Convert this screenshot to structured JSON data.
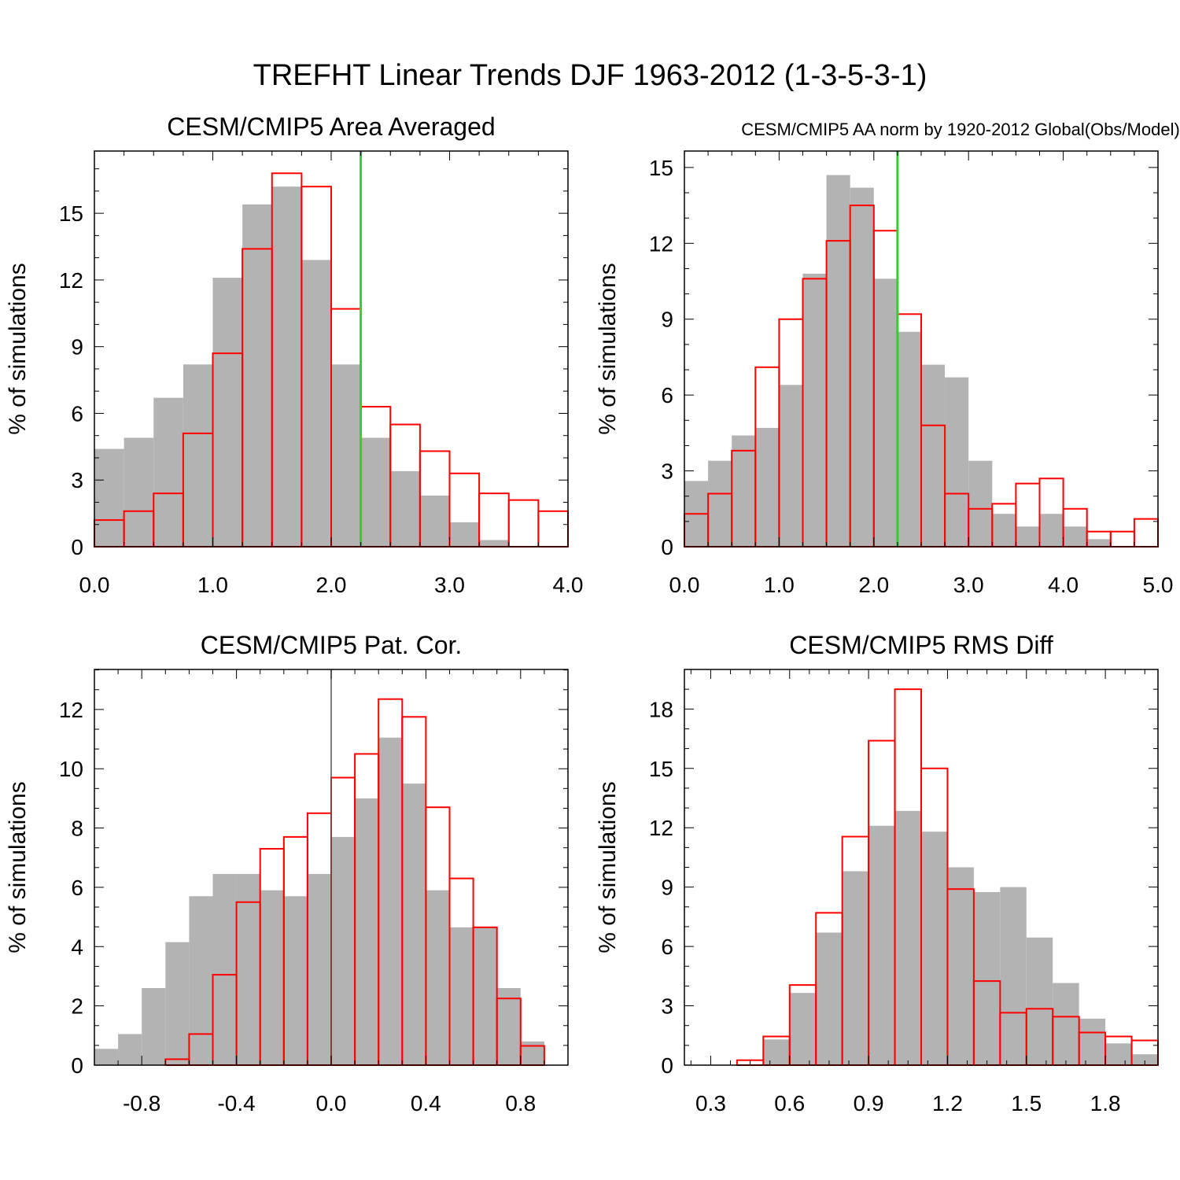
{
  "title": "TREFHT Linear Trends DJF 1963-2012 (1-3-5-3-1)",
  "colors": {
    "gray_fill": "#b3b3b3",
    "red_outline": "#ff0000",
    "green_line": "#33cc33",
    "zero_line": "#555555"
  },
  "chart_data": [
    {
      "type": "bar",
      "title": "CESM/CMIP5 Area Averaged",
      "ylabel": "% of simulations",
      "xlim": [
        0,
        4
      ],
      "ylim": [
        0,
        17.8
      ],
      "bin_start": 0,
      "bin_width": 0.25,
      "xticks": [
        0,
        1,
        2,
        3,
        4
      ],
      "xtick_labels": [
        "0.0",
        "1.0",
        "2.0",
        "3.0",
        "4.0"
      ],
      "yticks": [
        0,
        3,
        6,
        9,
        12,
        15
      ],
      "ytick_labels": [
        "0",
        "3",
        "6",
        "9",
        "12",
        "15"
      ],
      "vline": {
        "x": 2.25,
        "color": "green"
      },
      "series": [
        {
          "style": "gray-filled",
          "values": [
            4.4,
            4.9,
            6.7,
            8.2,
            12.1,
            15.4,
            16.2,
            12.9,
            8.2,
            4.9,
            3.4,
            2.3,
            1.1,
            0.3,
            0,
            0
          ]
        },
        {
          "style": "red-outline",
          "values": [
            1.2,
            1.6,
            2.4,
            5.1,
            8.7,
            13.4,
            16.8,
            16.2,
            10.7,
            6.3,
            5.5,
            4.3,
            3.3,
            2.4,
            2.1,
            1.6
          ]
        }
      ]
    },
    {
      "type": "bar",
      "title": "CESM/CMIP5 AA norm by 1920-2012 Global(Obs/Model)",
      "ylabel": "% of simulations",
      "xlim": [
        0,
        5
      ],
      "ylim": [
        0,
        15.65
      ],
      "bin_start": 0,
      "bin_width": 0.25,
      "xticks": [
        0,
        1,
        2,
        3,
        4,
        5
      ],
      "xtick_labels": [
        "0.0",
        "1.0",
        "2.0",
        "3.0",
        "4.0",
        "5.0"
      ],
      "yticks": [
        0,
        3,
        6,
        9,
        12,
        15
      ],
      "ytick_labels": [
        "0",
        "3",
        "6",
        "9",
        "12",
        "15"
      ],
      "vline": {
        "x": 2.25,
        "color": "green"
      },
      "series": [
        {
          "style": "gray-filled",
          "values": [
            2.6,
            3.4,
            4.4,
            4.7,
            6.4,
            10.8,
            14.7,
            14.2,
            10.6,
            8.5,
            7.2,
            6.7,
            3.4,
            1.3,
            0.8,
            1.3,
            0.8,
            0.3,
            0,
            0
          ]
        },
        {
          "style": "red-outline",
          "values": [
            1.3,
            2.1,
            3.8,
            7.1,
            9.0,
            10.6,
            12.1,
            13.5,
            12.5,
            9.2,
            4.8,
            2.1,
            1.5,
            1.7,
            2.5,
            2.7,
            1.5,
            0.6,
            0.6,
            1.1
          ]
        }
      ]
    },
    {
      "type": "bar",
      "title": "CESM/CMIP5 Pat. Cor.",
      "ylabel": "% of simulations",
      "xlim": [
        -1,
        1
      ],
      "ylim": [
        0,
        13.35
      ],
      "bin_start": -1,
      "bin_width": 0.1,
      "xticks": [
        -0.8,
        -0.4,
        0,
        0.4,
        0.8
      ],
      "xtick_labels": [
        "-0.8",
        "-0.4",
        "0.0",
        "0.4",
        "0.8"
      ],
      "yticks": [
        0,
        2,
        4,
        6,
        8,
        10,
        12
      ],
      "ytick_labels": [
        "0",
        "2",
        "4",
        "6",
        "8",
        "10",
        "12"
      ],
      "vline": {
        "x": 0,
        "color": "zero"
      },
      "series": [
        {
          "style": "gray-filled",
          "values": [
            0.55,
            1.05,
            2.6,
            4.15,
            5.7,
            6.45,
            6.45,
            5.9,
            5.7,
            6.45,
            7.7,
            9.0,
            11.05,
            9.5,
            5.9,
            4.65,
            4.65,
            2.6,
            0.8,
            0
          ]
        },
        {
          "style": "red-outline",
          "values": [
            0,
            0,
            0,
            0.2,
            1.05,
            3.05,
            5.5,
            7.3,
            7.7,
            8.5,
            9.7,
            10.5,
            12.35,
            11.75,
            8.7,
            6.3,
            4.65,
            2.25,
            0.65,
            0
          ]
        }
      ]
    },
    {
      "type": "bar",
      "title": "CESM/CMIP5 RMS Diff",
      "ylabel": "% of simulations",
      "xlim": [
        0.2,
        2.0
      ],
      "ylim": [
        0,
        20.0
      ],
      "bin_start": 0.2,
      "bin_width": 0.1,
      "xticks": [
        0.3,
        0.6,
        0.9,
        1.2,
        1.5,
        1.8
      ],
      "xtick_labels": [
        "0.3",
        "0.6",
        "0.9",
        "1.2",
        "1.5",
        "1.8"
      ],
      "yticks": [
        0,
        3,
        6,
        9,
        12,
        15,
        18
      ],
      "ytick_labels": [
        "0",
        "3",
        "6",
        "9",
        "12",
        "15",
        "18"
      ],
      "vline": null,
      "series": [
        {
          "style": "gray-filled",
          "values": [
            0,
            0,
            0,
            1.3,
            3.65,
            6.7,
            9.8,
            12.1,
            12.85,
            11.8,
            10.0,
            8.75,
            9.0,
            6.45,
            4.15,
            2.35,
            1.1,
            0.55
          ]
        },
        {
          "style": "red-outline",
          "values": [
            0,
            0,
            0.25,
            1.45,
            4.05,
            7.7,
            11.55,
            16.4,
            19.0,
            15.0,
            8.9,
            4.25,
            2.65,
            2.85,
            2.45,
            1.65,
            1.45,
            1.25
          ]
        }
      ]
    }
  ]
}
